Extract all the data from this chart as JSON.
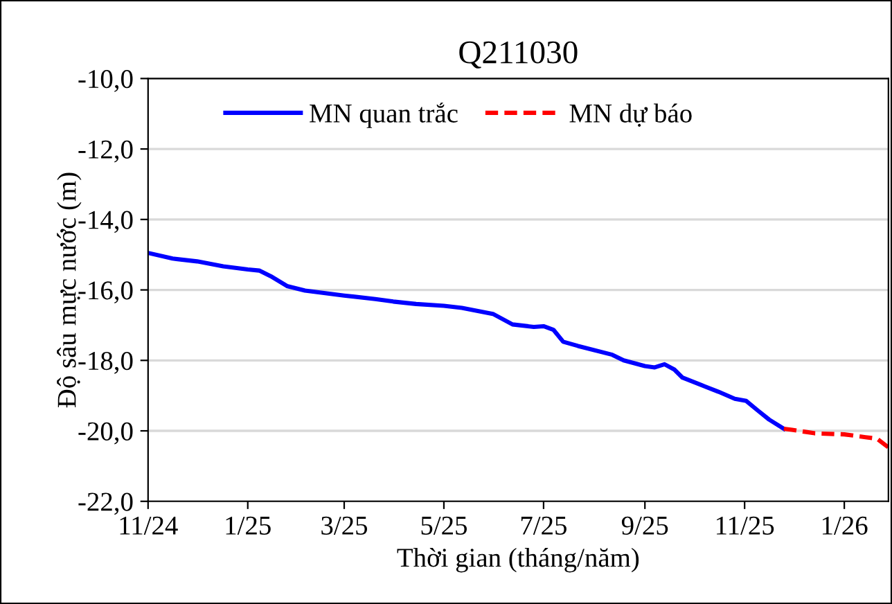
{
  "chart_data": {
    "type": "line",
    "title": "Q211030",
    "xlabel": "Thời gian (tháng/năm)",
    "ylabel": "Độ sâu mực nước (m)",
    "series": [
      {
        "name": "MN quan trắc",
        "color": "#0000ff",
        "line_style": "solid",
        "x": [
          "2024-11-01",
          "2024-11-16",
          "2024-12-01",
          "2024-12-17",
          "2025-01-01",
          "2025-01-08",
          "2025-01-15",
          "2025-01-25",
          "2025-02-05",
          "2025-03-01",
          "2025-03-20",
          "2025-03-31",
          "2025-04-14",
          "2025-05-01",
          "2025-05-12",
          "2025-05-31",
          "2025-06-12",
          "2025-06-25",
          "2025-07-01",
          "2025-07-07",
          "2025-07-13",
          "2025-07-22",
          "2025-08-12",
          "2025-08-19",
          "2025-09-01",
          "2025-09-07",
          "2025-09-13",
          "2025-09-19",
          "2025-09-24",
          "2025-10-05",
          "2025-10-16",
          "2025-10-26",
          "2025-11-02",
          "2025-11-09",
          "2025-11-16",
          "2025-11-25"
        ],
        "values": [
          -14.95,
          -15.11,
          -15.19,
          -15.33,
          -15.42,
          -15.45,
          -15.61,
          -15.89,
          -16.02,
          -16.16,
          -16.26,
          -16.33,
          -16.4,
          -16.45,
          -16.51,
          -16.68,
          -16.98,
          -17.05,
          -17.03,
          -17.13,
          -17.47,
          -17.59,
          -17.84,
          -18.0,
          -18.16,
          -18.2,
          -18.11,
          -18.26,
          -18.49,
          -18.69,
          -18.89,
          -19.09,
          -19.15,
          -19.42,
          -19.68,
          -19.94
        ]
      },
      {
        "name": "MN dự báo",
        "color": "#ff0000",
        "line_style": "dashed",
        "x": [
          "2025-11-25",
          "2025-11-30",
          "2025-12-14",
          "2026-01-01",
          "2026-01-14",
          "2026-01-21",
          "2026-01-28"
        ],
        "values": [
          -19.94,
          -19.97,
          -20.07,
          -20.1,
          -20.18,
          -20.22,
          -20.47
        ]
      }
    ],
    "xlim": [
      "2024-11-01",
      "2026-01-28"
    ],
    "xticks": [
      {
        "value": "2024-11-01",
        "label": "11/24"
      },
      {
        "value": "2025-01-01",
        "label": "1/25"
      },
      {
        "value": "2025-03-01",
        "label": "3/25"
      },
      {
        "value": "2025-05-01",
        "label": "5/25"
      },
      {
        "value": "2025-07-01",
        "label": "7/25"
      },
      {
        "value": "2025-09-01",
        "label": "9/25"
      },
      {
        "value": "2025-11-01",
        "label": "11/25"
      },
      {
        "value": "2026-01-01",
        "label": "1/26"
      }
    ],
    "ylim": [
      -22,
      -10
    ],
    "yticks": [
      {
        "value": -22,
        "label": "-22,0"
      },
      {
        "value": -20,
        "label": "-20,0"
      },
      {
        "value": -18,
        "label": "-18,0"
      },
      {
        "value": -16,
        "label": "-16,0"
      },
      {
        "value": -14,
        "label": "-14,0"
      },
      {
        "value": -12,
        "label": "-12,0"
      },
      {
        "value": -10,
        "label": "-10,0"
      }
    ],
    "grid": "y",
    "legend": "top",
    "marker": "none"
  }
}
